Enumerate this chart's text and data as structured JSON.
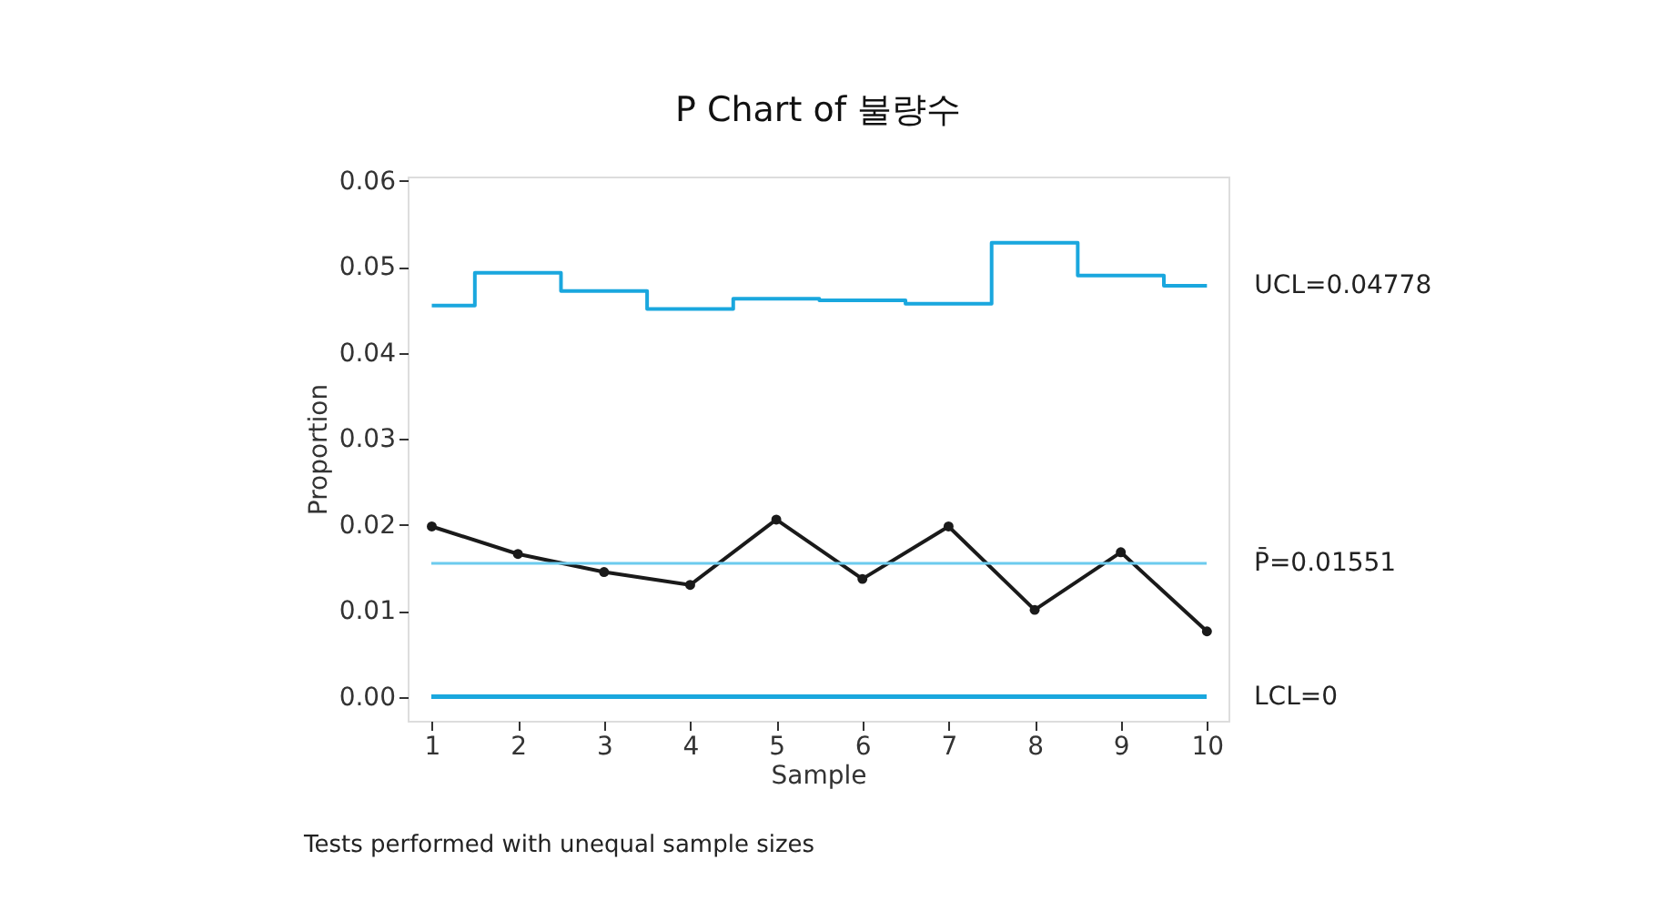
{
  "chart_data": {
    "type": "line",
    "title": "P Chart of 불량수",
    "xlabel": "Sample",
    "ylabel": "Proportion",
    "x": [
      1,
      2,
      3,
      4,
      5,
      6,
      7,
      8,
      9,
      10
    ],
    "series": [
      {
        "color": "#1a1a1a",
        "marker": "circle",
        "values": [
          0.0198,
          0.0166,
          0.0145,
          0.013,
          0.0206,
          0.0137,
          0.0198,
          0.0101,
          0.0168,
          0.0076
        ]
      },
      {
        "type": "step",
        "color": "#1aa7de",
        "marker": "none",
        "values": [
          0.0455,
          0.0493,
          0.0472,
          0.0451,
          0.0463,
          0.0461,
          0.0457,
          0.0528,
          0.049,
          0.0478
        ]
      }
    ],
    "ref_lines": [
      {
        "axis": "y",
        "value": 0.01551,
        "label": "P̄=0.01551",
        "color": "#6ccbee"
      },
      {
        "axis": "y",
        "value": 0,
        "label": "LCL=0",
        "color": "#1aa7de"
      }
    ],
    "annotations": [
      {
        "text": "UCL=0.04778",
        "x": 10,
        "y": 0.04778
      },
      "Tests performed with unequal sample sizes"
    ],
    "xlim": [
      0.72,
      10.25
    ],
    "ylim": [
      -0.0028,
      0.0605
    ],
    "xticks": [
      1,
      2,
      3,
      4,
      5,
      6,
      7,
      8,
      9,
      10
    ],
    "yticks": [
      {
        "value": 0,
        "label": "0.00"
      },
      0.01,
      0.02,
      0.03,
      0.04,
      0.05,
      0.06
    ],
    "grid": false
  }
}
